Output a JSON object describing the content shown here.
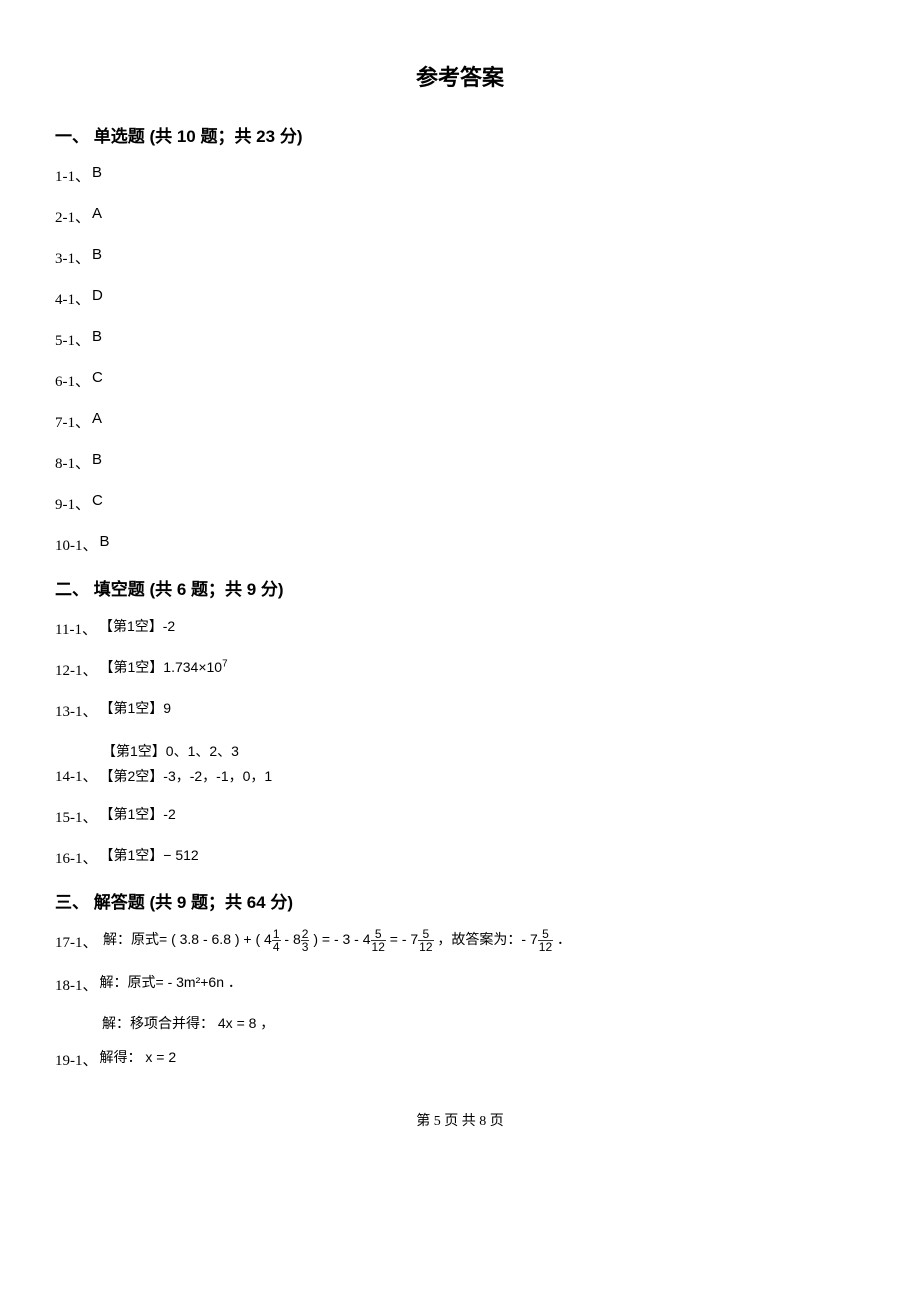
{
  "page": {
    "title": "参考答案",
    "title_fontsize": 22,
    "body_fontsize": 16,
    "small_fontsize": 14,
    "text_color": "#000000",
    "background_color": "#ffffff",
    "footer": "第 5 页 共 8 页"
  },
  "section1": {
    "header": "一、 单选题 (共 10 题；共 23 分)",
    "answers": [
      {
        "num": "1-1、",
        "val": "B"
      },
      {
        "num": "2-1、",
        "val": "A"
      },
      {
        "num": "3-1、",
        "val": "B"
      },
      {
        "num": "4-1、",
        "val": "D"
      },
      {
        "num": "5-1、",
        "val": "B"
      },
      {
        "num": "6-1、",
        "val": "C"
      },
      {
        "num": "7-1、",
        "val": "A"
      },
      {
        "num": "8-1、",
        "val": "B"
      },
      {
        "num": "9-1、",
        "val": "C"
      },
      {
        "num": "10-1、",
        "val": "B"
      }
    ]
  },
  "section2": {
    "header": "二、 填空题 (共 6 题；共 9 分)",
    "q11": {
      "num": "11-1、",
      "val": "【第1空】-2"
    },
    "q12": {
      "num": "12-1、",
      "prefix": "【第1空】",
      "base": "1.734×10",
      "exp": "7"
    },
    "q13": {
      "num": "13-1、",
      "val": "【第1空】9"
    },
    "q14": {
      "num": "14-1、",
      "blank1": "【第1空】0、1、2、3",
      "blank2": "【第2空】-3，-2，-1，0，1"
    },
    "q15": {
      "num": "15-1、",
      "val": "【第1空】-2"
    },
    "q16": {
      "num": "16-1、",
      "val": "【第1空】− 512"
    }
  },
  "section3": {
    "header": "三、 解答题 (共 9 题；共 64 分)",
    "q17": {
      "num": "17-1、",
      "t1": "解：原式= ( 3.8 - 6.8 ) + ( 4",
      "f1n": "1",
      "f1d": "4",
      "t2": " - 8",
      "f2n": "2",
      "f2d": "3",
      "t3": " ) = - 3 - 4",
      "f3n": "5",
      "f3d": "12",
      "t4": " = - 7",
      "f4n": "5",
      "f4d": "12",
      "t5": " ，故答案为：- 7",
      "f5n": "5",
      "f5d": "12",
      "t6": " ．"
    },
    "q18": {
      "num": "18-1、",
      "val": "解：原式= - 3m²+6n ．"
    },
    "q19": {
      "line1": "解：移项合并得： 4x = 8 ，",
      "num": "19-1、",
      "line2": "解得： x = 2"
    }
  }
}
